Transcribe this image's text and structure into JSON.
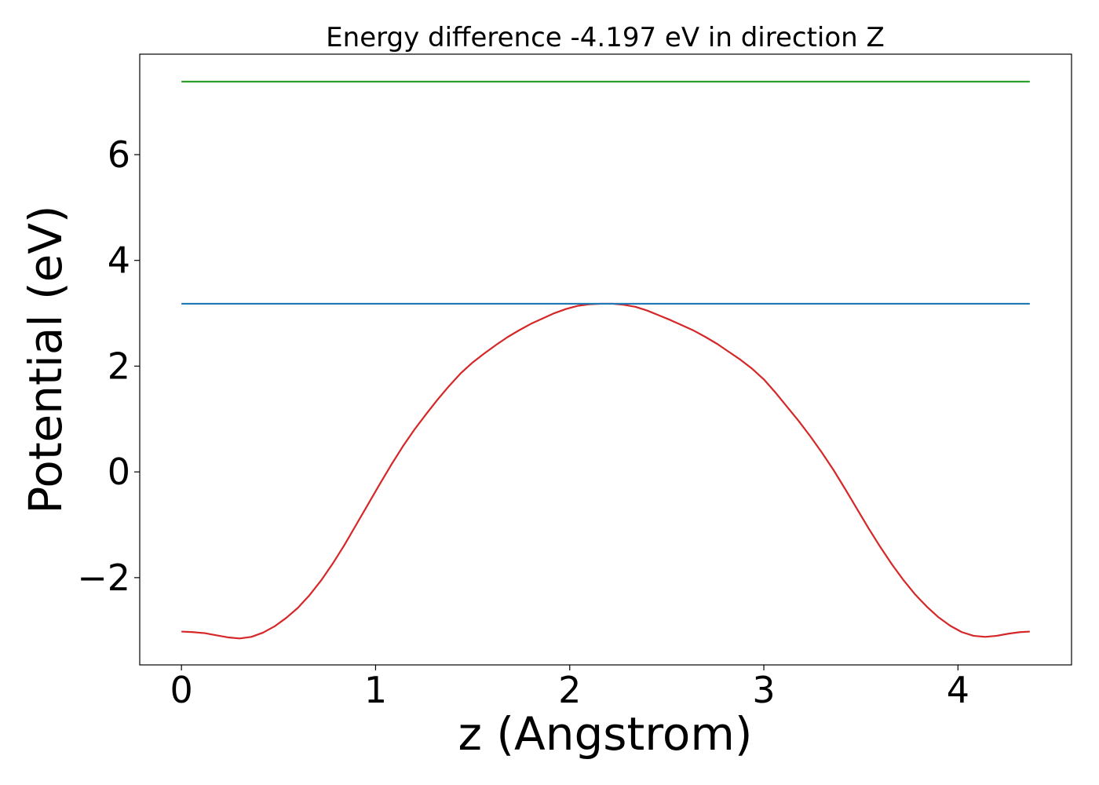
{
  "chart_data": {
    "type": "line",
    "title": "Energy difference -4.197 eV in direction Z",
    "xlabel": "z (Angstrom)",
    "ylabel": "Potential (eV)",
    "xlim": [
      -0.215,
      4.585
    ],
    "ylim": [
      -3.65,
      7.9
    ],
    "x_ticks": [
      0,
      1,
      2,
      3,
      4
    ],
    "x_tick_labels": [
      "0",
      "1",
      "2",
      "3",
      "4"
    ],
    "y_ticks": [
      -2,
      0,
      2,
      4,
      6
    ],
    "y_tick_labels": [
      "−2",
      "0",
      "2",
      "4",
      "6"
    ],
    "grid": false,
    "series": [
      {
        "color": "#d62728",
        "x": [
          0.0,
          0.06,
          0.12,
          0.18,
          0.24,
          0.3,
          0.36,
          0.42,
          0.48,
          0.54,
          0.6,
          0.66,
          0.72,
          0.78,
          0.84,
          0.9,
          0.96,
          1.02,
          1.08,
          1.14,
          1.2,
          1.26,
          1.32,
          1.38,
          1.44,
          1.5,
          1.56,
          1.62,
          1.68,
          1.74,
          1.8,
          1.86,
          1.92,
          1.98,
          2.04,
          2.1,
          2.16,
          2.22,
          2.28,
          2.34,
          2.4,
          2.46,
          2.52,
          2.58,
          2.64,
          2.7,
          2.76,
          2.82,
          2.88,
          2.94,
          3.0,
          3.06,
          3.12,
          3.18,
          3.24,
          3.3,
          3.36,
          3.42,
          3.48,
          3.54,
          3.6,
          3.66,
          3.72,
          3.78,
          3.84,
          3.9,
          3.96,
          4.02,
          4.08,
          4.14,
          4.2,
          4.26,
          4.32,
          4.37
        ],
        "y": [
          -3.02,
          -3.03,
          -3.05,
          -3.09,
          -3.13,
          -3.15,
          -3.12,
          -3.04,
          -2.92,
          -2.76,
          -2.57,
          -2.33,
          -2.05,
          -1.73,
          -1.38,
          -1.0,
          -0.62,
          -0.24,
          0.13,
          0.48,
          0.8,
          1.09,
          1.37,
          1.63,
          1.87,
          2.07,
          2.24,
          2.4,
          2.55,
          2.68,
          2.8,
          2.9,
          3.0,
          3.08,
          3.14,
          3.17,
          3.18,
          3.18,
          3.16,
          3.12,
          3.05,
          2.96,
          2.87,
          2.77,
          2.67,
          2.55,
          2.42,
          2.27,
          2.12,
          1.95,
          1.75,
          1.5,
          1.23,
          0.96,
          0.67,
          0.36,
          0.03,
          -0.33,
          -0.7,
          -1.07,
          -1.42,
          -1.75,
          -2.05,
          -2.32,
          -2.55,
          -2.75,
          -2.91,
          -3.03,
          -3.1,
          -3.12,
          -3.1,
          -3.06,
          -3.03,
          -3.02
        ]
      },
      {
        "color": "#1f77b4",
        "x": [
          0.0,
          4.37
        ],
        "y": [
          3.18,
          3.18
        ]
      },
      {
        "color": "#2ca02c",
        "x": [
          0.0,
          4.37
        ],
        "y": [
          7.38,
          7.38
        ]
      }
    ]
  }
}
